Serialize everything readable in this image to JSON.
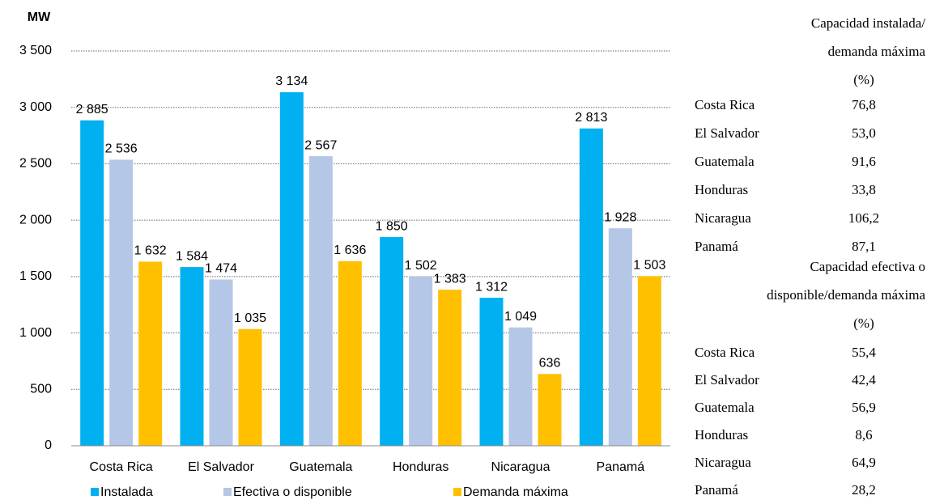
{
  "chart_data": {
    "type": "bar",
    "y_unit": "MW",
    "categories": [
      "Costa Rica",
      "El Salvador",
      "Guatemala",
      "Honduras",
      "Nicaragua",
      "Panamá"
    ],
    "series": [
      {
        "name": "Instalada",
        "color": "#00b0f0",
        "values": [
          2885,
          1584,
          3134,
          1850,
          1312,
          2813
        ],
        "value_labels": [
          "2 885",
          "1 584",
          "3 134",
          "1 850",
          "1 312",
          "2 813"
        ]
      },
      {
        "name": "Efectiva o disponible",
        "color": "#b4c7e7",
        "values": [
          2536,
          1474,
          2567,
          1502,
          1049,
          1928
        ],
        "value_labels": [
          "2 536",
          "1 474",
          "2 567",
          "1 502",
          "1 049",
          "1 928"
        ]
      },
      {
        "name": "Demanda máxima",
        "color": "#ffc000",
        "values": [
          1632,
          1035,
          1636,
          1383,
          636,
          1503
        ],
        "value_labels": [
          "1 632",
          "1 035",
          "1 636",
          "1 383",
          "636",
          "1 503"
        ]
      }
    ],
    "ylim": [
      0,
      3500
    ],
    "yticks": [
      0,
      500,
      {
        "value": 1000,
        "label": "1 000"
      },
      {
        "value": 1500,
        "label": "1 500"
      },
      {
        "value": 2000,
        "label": "2 000"
      },
      {
        "value": 2500,
        "label": "2 500"
      },
      {
        "value": 3000,
        "label": "3 000"
      },
      {
        "value": 3500,
        "label": "3 500"
      }
    ],
    "grid": true,
    "legend": "bottom"
  },
  "side_table": {
    "sections": [
      {
        "title": [
          "Capacidad instalada/",
          "demanda máxima",
          "(%)"
        ],
        "rows": [
          [
            "Costa Rica",
            "76,8"
          ],
          [
            "El Salvador",
            "53,0"
          ],
          [
            "Guatemala",
            "91,6"
          ],
          [
            "Honduras",
            "33,8"
          ],
          [
            "Nicaragua",
            "106,2"
          ],
          [
            "Panamá",
            "87,1"
          ]
        ]
      },
      {
        "title": [
          "Capacidad efectiva o",
          "disponible/demanda máxima",
          "(%)"
        ],
        "rows": [
          [
            "Costa Rica",
            "55,4"
          ],
          [
            "El Salvador",
            "42,4"
          ],
          [
            "Guatemala",
            "56,9"
          ],
          [
            "Honduras",
            "8,6"
          ],
          [
            "Nicaragua",
            "64,9"
          ],
          [
            "Panamá",
            "28,2"
          ]
        ]
      }
    ]
  }
}
